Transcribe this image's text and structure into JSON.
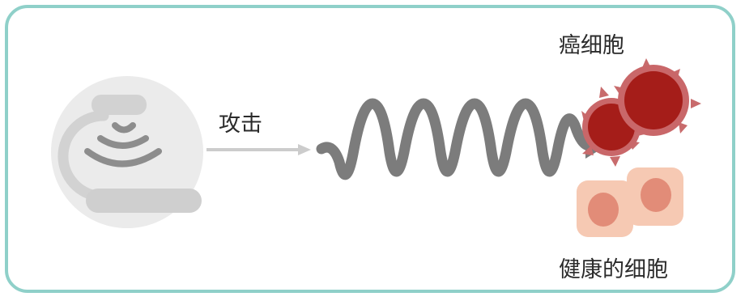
{
  "labels": {
    "attack": "攻击",
    "cancer_cells": "癌细胞",
    "healthy_cells": "健康的细胞"
  },
  "icons": {
    "device": "ultrasound-transducer-icon",
    "wave": "sound-wave-icon",
    "cancer_cell": "cancer-cell-icon",
    "healthy_cell": "healthy-cell-icon"
  },
  "colors": {
    "border": "#8fd0c9",
    "device_bg": "#ebebeb",
    "device_part": "#cfcfcf",
    "signal": "#8d8d8d",
    "wave": "#7d7d7d",
    "cancer": "#a51d19",
    "cancer_rim": "#c96769",
    "healthy": "#f6c9b3",
    "healthy_nucleus": "#e38d7a"
  }
}
